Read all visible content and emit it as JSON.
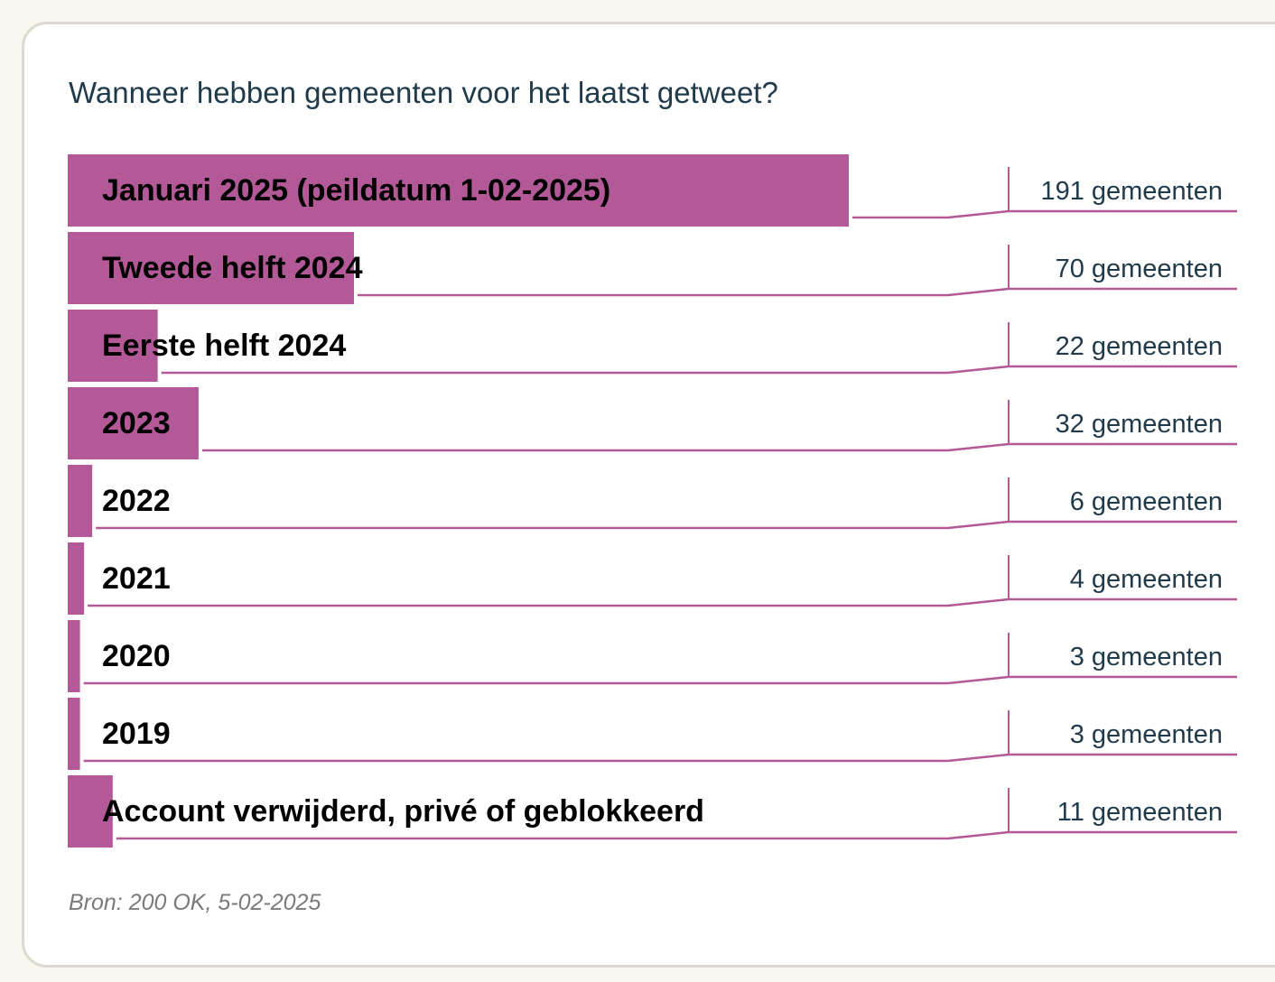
{
  "colors": {
    "page_background": "#f8f6ee",
    "card_background": "#ffffff",
    "card_border": "#dedad0",
    "bar": "#b35998",
    "title": "#1f3a4a",
    "category_label": "#000000",
    "value_label": "#1f3a4a",
    "source": "#7a7a7a"
  },
  "chart_data": {
    "type": "bar",
    "orientation": "horizontal",
    "title": "Wanneer hebben gemeenten voor het laatst getweet?",
    "categories": [
      "Januari 2025 (peildatum 1-02-2025)",
      "Tweede helft 2024",
      "Eerste helft 2024",
      "2023",
      "2022",
      "2021",
      "2020",
      "2019",
      "Account verwijderd, privé of geblokkeerd"
    ],
    "values": [
      191,
      70,
      22,
      32,
      6,
      4,
      3,
      3,
      11
    ],
    "value_labels": [
      "191 gemeenten",
      "70 gemeenten",
      "22 gemeenten",
      "32 gemeenten",
      "6 gemeenten",
      "4 gemeenten",
      "3 gemeenten",
      "3 gemeenten",
      "11 gemeenten"
    ],
    "xlim": [
      0,
      191
    ],
    "grid": false,
    "legend": "none"
  },
  "source": "Bron: 200 OK, 5-02-2025"
}
